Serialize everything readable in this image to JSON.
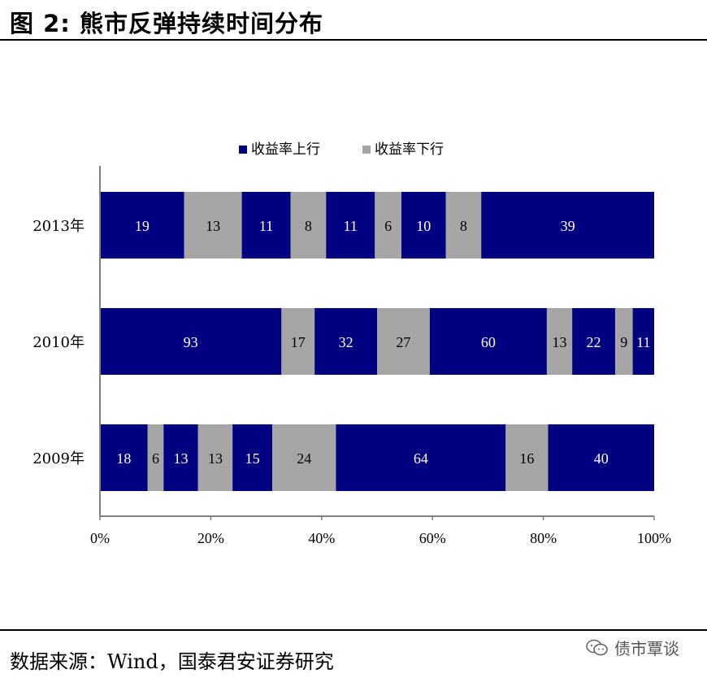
{
  "figure": {
    "title": "图  2:  熊市反弹持续时间分布",
    "source": "数据来源：Wind，国泰君安证券研究",
    "watermark": "债市覃谈"
  },
  "chart_data": {
    "type": "bar",
    "orientation": "horizontal",
    "stacked": "percent",
    "categories": [
      "2013年",
      "2010年",
      "2009年"
    ],
    "legend": {
      "placement": "top-center",
      "entries": [
        {
          "name": "收益率上行",
          "color": "#000080"
        },
        {
          "name": "收益率下行",
          "color": "#A6A6A6"
        }
      ]
    },
    "segments": {
      "2013年": [
        {
          "value": 19,
          "series": "收益率上行"
        },
        {
          "value": 13,
          "series": "收益率下行"
        },
        {
          "value": 11,
          "series": "收益率上行"
        },
        {
          "value": 8,
          "series": "收益率下行"
        },
        {
          "value": 11,
          "series": "收益率上行"
        },
        {
          "value": 6,
          "series": "收益率下行"
        },
        {
          "value": 10,
          "series": "收益率上行"
        },
        {
          "value": 8,
          "series": "收益率下行"
        },
        {
          "value": 39,
          "series": "收益率上行"
        }
      ],
      "2010年": [
        {
          "value": 93,
          "series": "收益率上行"
        },
        {
          "value": 17,
          "series": "收益率下行"
        },
        {
          "value": 32,
          "series": "收益率上行"
        },
        {
          "value": 27,
          "series": "收益率下行"
        },
        {
          "value": 60,
          "series": "收益率上行"
        },
        {
          "value": 13,
          "series": "收益率下行"
        },
        {
          "value": 22,
          "series": "收益率上行"
        },
        {
          "value": 9,
          "series": "收益率下行"
        },
        {
          "value": 11,
          "series": "收益率上行"
        }
      ],
      "2009年": [
        {
          "value": 18,
          "series": "收益率上行"
        },
        {
          "value": 6,
          "series": "收益率下行"
        },
        {
          "value": 13,
          "series": "收益率上行"
        },
        {
          "value": 13,
          "series": "收益率下行"
        },
        {
          "value": 15,
          "series": "收益率上行"
        },
        {
          "value": 24,
          "series": "收益率下行"
        },
        {
          "value": 64,
          "series": "收益率上行"
        },
        {
          "value": 16,
          "series": "收益率下行"
        },
        {
          "value": 40,
          "series": "收益率上行"
        }
      ]
    },
    "x_ticks": [
      "0%",
      "20%",
      "40%",
      "60%",
      "80%",
      "100%"
    ],
    "xlim": [
      0,
      100
    ],
    "grid": false
  }
}
